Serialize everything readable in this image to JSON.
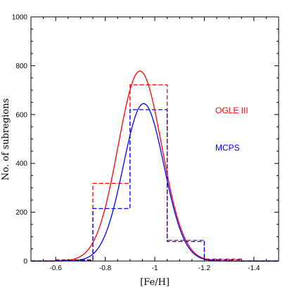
{
  "chart_data": {
    "type": "line",
    "title": "",
    "xlabel": "[Fe/H]",
    "ylabel": "No.  of   subregions",
    "xlim": [
      -0.5,
      -1.5
    ],
    "ylim": [
      0,
      1000
    ],
    "x_reversed": true,
    "xticks": [
      -0.6,
      -0.8,
      -1.0,
      -1.2,
      -1.4
    ],
    "xtick_labels": [
      "-0.6",
      "-0.8",
      "-1",
      "-1.2",
      "-1.4"
    ],
    "yticks": [
      0,
      200,
      400,
      600,
      800,
      1000
    ],
    "ytick_labels": [
      "0",
      "200",
      "400",
      "600",
      "800",
      "1000"
    ],
    "grid": false,
    "legend_placement": "right",
    "series": [
      {
        "name": "OGLE III",
        "color": "#ff0000",
        "histogram": {
          "bin_edges": [
            -0.6,
            -0.75,
            -0.9,
            -1.05,
            -1.2,
            -1.35
          ],
          "counts": [
            5,
            318,
            722,
            85,
            8
          ]
        },
        "gaussian_fit": {
          "mean": -0.94,
          "sigma": 0.088,
          "peak": 778
        }
      },
      {
        "name": "MCPS",
        "color": "#0000ff",
        "histogram": {
          "bin_edges": [
            -0.6,
            -0.75,
            -0.9,
            -1.05,
            -1.2,
            -1.35
          ],
          "counts": [
            3,
            215,
            620,
            80,
            5
          ]
        },
        "gaussian_fit": {
          "mean": -0.955,
          "sigma": 0.082,
          "peak": 645
        }
      }
    ]
  }
}
